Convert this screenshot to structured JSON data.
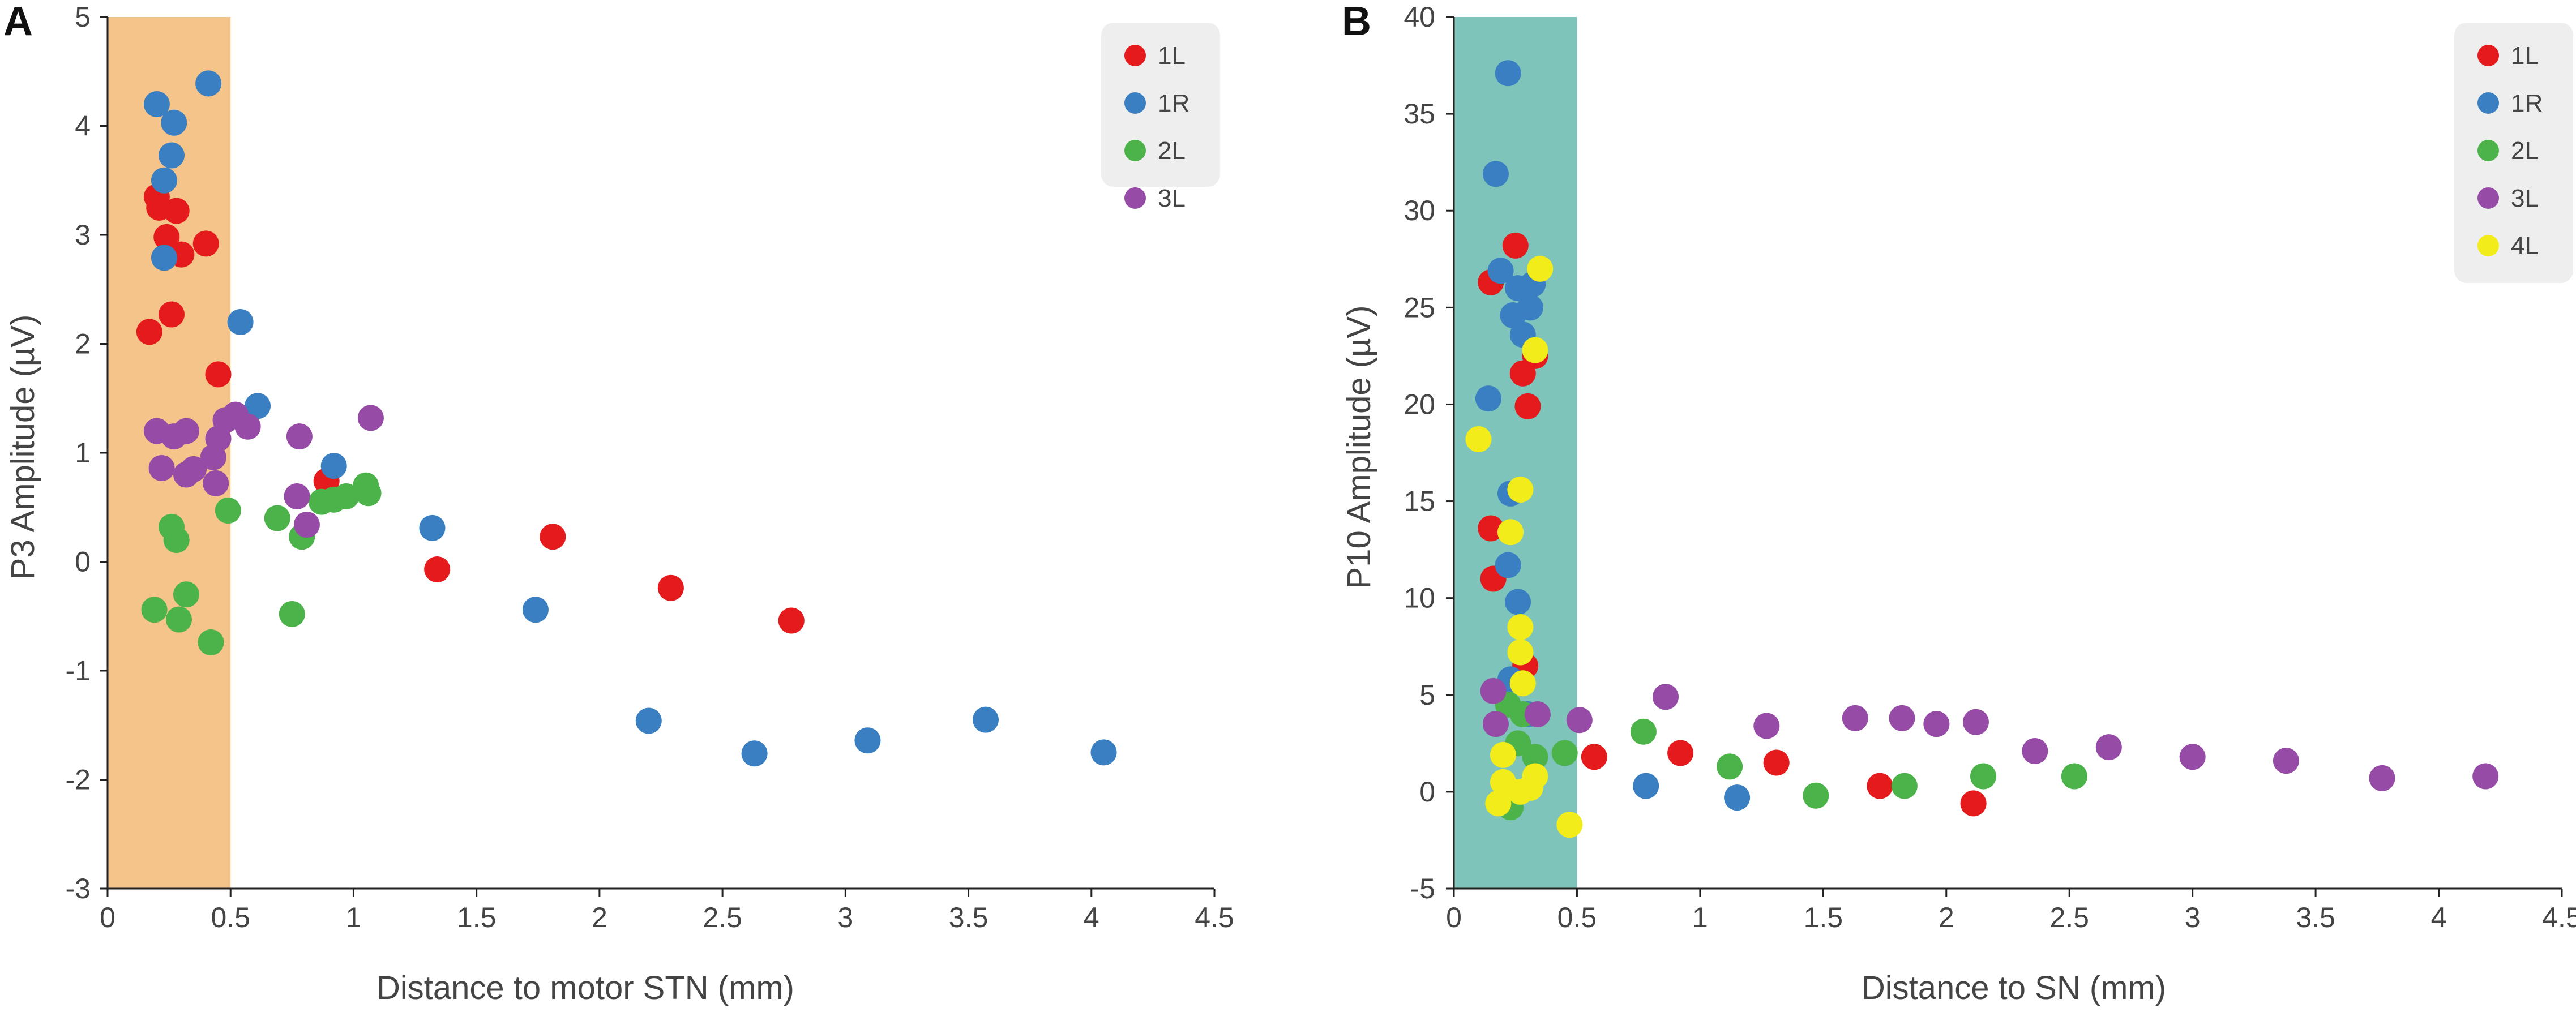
{
  "chart_data": [
    {
      "panel": "A",
      "type": "scatter",
      "xlabel": "Distance to motor STN (mm)",
      "ylabel": "P3 Amplitude (µV)",
      "xlim": [
        0,
        4.5
      ],
      "ylim": [
        -3,
        5
      ],
      "x_ticks": [
        0,
        0.5,
        1,
        1.5,
        2,
        2.5,
        3,
        3.5,
        4,
        4.5
      ],
      "x_tick_labels": [
        "0",
        "0.5",
        "1",
        "1.5",
        "2",
        "2.5",
        "3",
        "3.5",
        "4",
        "4.5"
      ],
      "y_ticks": [
        -3,
        -2,
        -1,
        0,
        1,
        2,
        3,
        4,
        5
      ],
      "y_tick_labels": [
        "-3",
        "-2",
        "-1",
        "0",
        "1",
        "2",
        "3",
        "4",
        "5"
      ],
      "shaded_region": {
        "x_from": 0,
        "x_to": 0.5,
        "color": "#f5c48a"
      },
      "legend_position": "top-right",
      "series": [
        {
          "name": "1L",
          "color": "#e41a1c",
          "points": [
            [
              0.2,
              3.35
            ],
            [
              0.21,
              3.25
            ],
            [
              0.28,
              3.22
            ],
            [
              0.24,
              2.98
            ],
            [
              0.3,
              2.82
            ],
            [
              0.4,
              2.92
            ],
            [
              0.26,
              2.27
            ],
            [
              0.17,
              2.11
            ],
            [
              0.45,
              1.72
            ],
            [
              0.89,
              0.74
            ],
            [
              1.34,
              -0.07
            ],
            [
              1.81,
              0.23
            ],
            [
              2.29,
              -0.24
            ],
            [
              2.78,
              -0.54
            ]
          ]
        },
        {
          "name": "1R",
          "color": "#3a7fc1",
          "points": [
            [
              0.2,
              4.2
            ],
            [
              0.41,
              4.39
            ],
            [
              0.27,
              4.03
            ],
            [
              0.26,
              3.73
            ],
            [
              0.23,
              3.5
            ],
            [
              0.23,
              2.79
            ],
            [
              0.54,
              2.2
            ],
            [
              0.61,
              1.43
            ],
            [
              0.92,
              0.88
            ],
            [
              1.32,
              0.31
            ],
            [
              1.74,
              -0.44
            ],
            [
              2.2,
              -1.46
            ],
            [
              2.63,
              -1.76
            ],
            [
              3.09,
              -1.64
            ],
            [
              3.57,
              -1.45
            ],
            [
              4.05,
              -1.75
            ]
          ]
        },
        {
          "name": "2L",
          "color": "#4cb24a",
          "points": [
            [
              0.26,
              0.32
            ],
            [
              0.28,
              0.2
            ],
            [
              0.49,
              0.47
            ],
            [
              0.19,
              -0.44
            ],
            [
              0.32,
              -0.3
            ],
            [
              0.29,
              -0.53
            ],
            [
              0.42,
              -0.74
            ],
            [
              0.69,
              0.4
            ],
            [
              0.79,
              0.23
            ],
            [
              0.75,
              -0.48
            ],
            [
              0.87,
              0.55
            ],
            [
              0.92,
              0.57
            ],
            [
              0.97,
              0.6
            ],
            [
              1.05,
              0.7
            ],
            [
              1.06,
              0.63
            ]
          ]
        },
        {
          "name": "3L",
          "color": "#964ba6",
          "points": [
            [
              0.2,
              1.2
            ],
            [
              0.27,
              1.15
            ],
            [
              0.32,
              1.2
            ],
            [
              0.22,
              0.86
            ],
            [
              0.32,
              0.8
            ],
            [
              0.35,
              0.85
            ],
            [
              0.43,
              0.96
            ],
            [
              0.45,
              1.13
            ],
            [
              0.48,
              1.3
            ],
            [
              0.52,
              1.35
            ],
            [
              0.57,
              1.24
            ],
            [
              0.44,
              0.72
            ],
            [
              0.78,
              1.15
            ],
            [
              0.77,
              0.6
            ],
            [
              0.81,
              0.34
            ],
            [
              1.07,
              1.32
            ]
          ]
        }
      ]
    },
    {
      "panel": "B",
      "type": "scatter",
      "xlabel": "Distance to SN (mm)",
      "ylabel": "P10 Amplitude (µV)",
      "xlim": [
        0,
        4.5
      ],
      "ylim": [
        -5,
        40
      ],
      "x_ticks": [
        0,
        0.5,
        1,
        1.5,
        2,
        2.5,
        3,
        3.5,
        4,
        4.5
      ],
      "x_tick_labels": [
        "0",
        "0.5",
        "1",
        "1.5",
        "2",
        "2.5",
        "3",
        "3.5",
        "4",
        "4.5"
      ],
      "y_ticks": [
        -5,
        0,
        5,
        10,
        15,
        20,
        25,
        30,
        35,
        40
      ],
      "y_tick_labels": [
        "-5",
        "0",
        "5",
        "10",
        "15",
        "20",
        "25",
        "30",
        "35",
        "40"
      ],
      "shaded_region": {
        "x_from": 0,
        "x_to": 0.5,
        "color": "#7ec4bb"
      },
      "legend_position": "top-right",
      "series": [
        {
          "name": "1L",
          "color": "#e41a1c",
          "points": [
            [
              0.25,
              28.2
            ],
            [
              0.15,
              26.3
            ],
            [
              0.28,
              21.6
            ],
            [
              0.3,
              19.9
            ],
            [
              0.33,
              22.5
            ],
            [
              0.15,
              13.6
            ],
            [
              0.16,
              11.0
            ],
            [
              0.29,
              6.5
            ],
            [
              0.57,
              1.8
            ],
            [
              0.92,
              2.0
            ],
            [
              1.31,
              1.5
            ],
            [
              1.73,
              0.3
            ],
            [
              2.11,
              -0.6
            ]
          ]
        },
        {
          "name": "1R",
          "color": "#3a7fc1",
          "points": [
            [
              0.22,
              37.1
            ],
            [
              0.17,
              31.9
            ],
            [
              0.19,
              26.9
            ],
            [
              0.26,
              26.0
            ],
            [
              0.32,
              26.2
            ],
            [
              0.31,
              25.0
            ],
            [
              0.24,
              24.6
            ],
            [
              0.28,
              23.6
            ],
            [
              0.14,
              20.3
            ],
            [
              0.23,
              15.4
            ],
            [
              0.22,
              11.7
            ],
            [
              0.26,
              9.8
            ],
            [
              0.23,
              5.8
            ],
            [
              0.3,
              4.0
            ],
            [
              0.78,
              0.3
            ],
            [
              1.15,
              -0.3
            ]
          ]
        },
        {
          "name": "2L",
          "color": "#4cb24a",
          "points": [
            [
              0.22,
              4.5
            ],
            [
              0.28,
              4.0
            ],
            [
              0.26,
              2.5
            ],
            [
              0.33,
              1.8
            ],
            [
              0.45,
              2.0
            ],
            [
              0.77,
              3.1
            ],
            [
              0.23,
              -0.8
            ],
            [
              1.12,
              1.3
            ],
            [
              1.47,
              -0.2
            ],
            [
              1.83,
              0.3
            ],
            [
              2.15,
              0.8
            ],
            [
              2.52,
              0.8
            ]
          ]
        },
        {
          "name": "3L",
          "color": "#964ba6",
          "points": [
            [
              0.16,
              5.2
            ],
            [
              0.17,
              3.5
            ],
            [
              0.34,
              4.0
            ],
            [
              0.51,
              3.7
            ],
            [
              0.86,
              4.9
            ],
            [
              1.27,
              3.4
            ],
            [
              1.63,
              3.8
            ],
            [
              1.82,
              3.8
            ],
            [
              1.96,
              3.5
            ],
            [
              2.12,
              3.6
            ],
            [
              2.36,
              2.1
            ],
            [
              2.66,
              2.3
            ],
            [
              3.0,
              1.8
            ],
            [
              3.38,
              1.6
            ],
            [
              3.77,
              0.7
            ],
            [
              4.19,
              0.8
            ]
          ]
        },
        {
          "name": "4L",
          "color": "#f2ec1a",
          "points": [
            [
              0.35,
              27.0
            ],
            [
              0.33,
              22.8
            ],
            [
              0.1,
              18.2
            ],
            [
              0.27,
              15.6
            ],
            [
              0.23,
              13.4
            ],
            [
              0.27,
              8.5
            ],
            [
              0.27,
              7.2
            ],
            [
              0.28,
              5.6
            ],
            [
              0.2,
              1.9
            ],
            [
              0.33,
              0.8
            ],
            [
              0.2,
              0.5
            ],
            [
              0.27,
              0.0
            ],
            [
              0.31,
              0.2
            ],
            [
              0.18,
              -0.6
            ],
            [
              0.47,
              -1.7
            ]
          ]
        }
      ]
    }
  ]
}
